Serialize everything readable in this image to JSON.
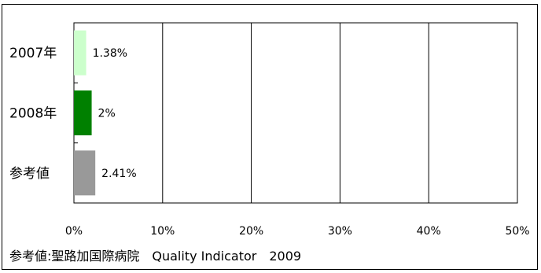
{
  "chart_data": {
    "type": "bar",
    "orientation": "horizontal",
    "categories": [
      "2007年",
      "2008年",
      "参考値"
    ],
    "values": [
      1.38,
      2,
      2.41
    ],
    "value_labels": [
      "1.38%",
      "2%",
      "2.41%"
    ],
    "colors": [
      "#ccffcc",
      "#008000",
      "#999999"
    ],
    "xlim": [
      0,
      50
    ],
    "xticks": [
      "0%",
      "10%",
      "20%",
      "30%",
      "40%",
      "50%"
    ],
    "grid": true,
    "legend": "none"
  },
  "footnote": "参考値:聖路加国際病院　Quality Indicator　2009"
}
